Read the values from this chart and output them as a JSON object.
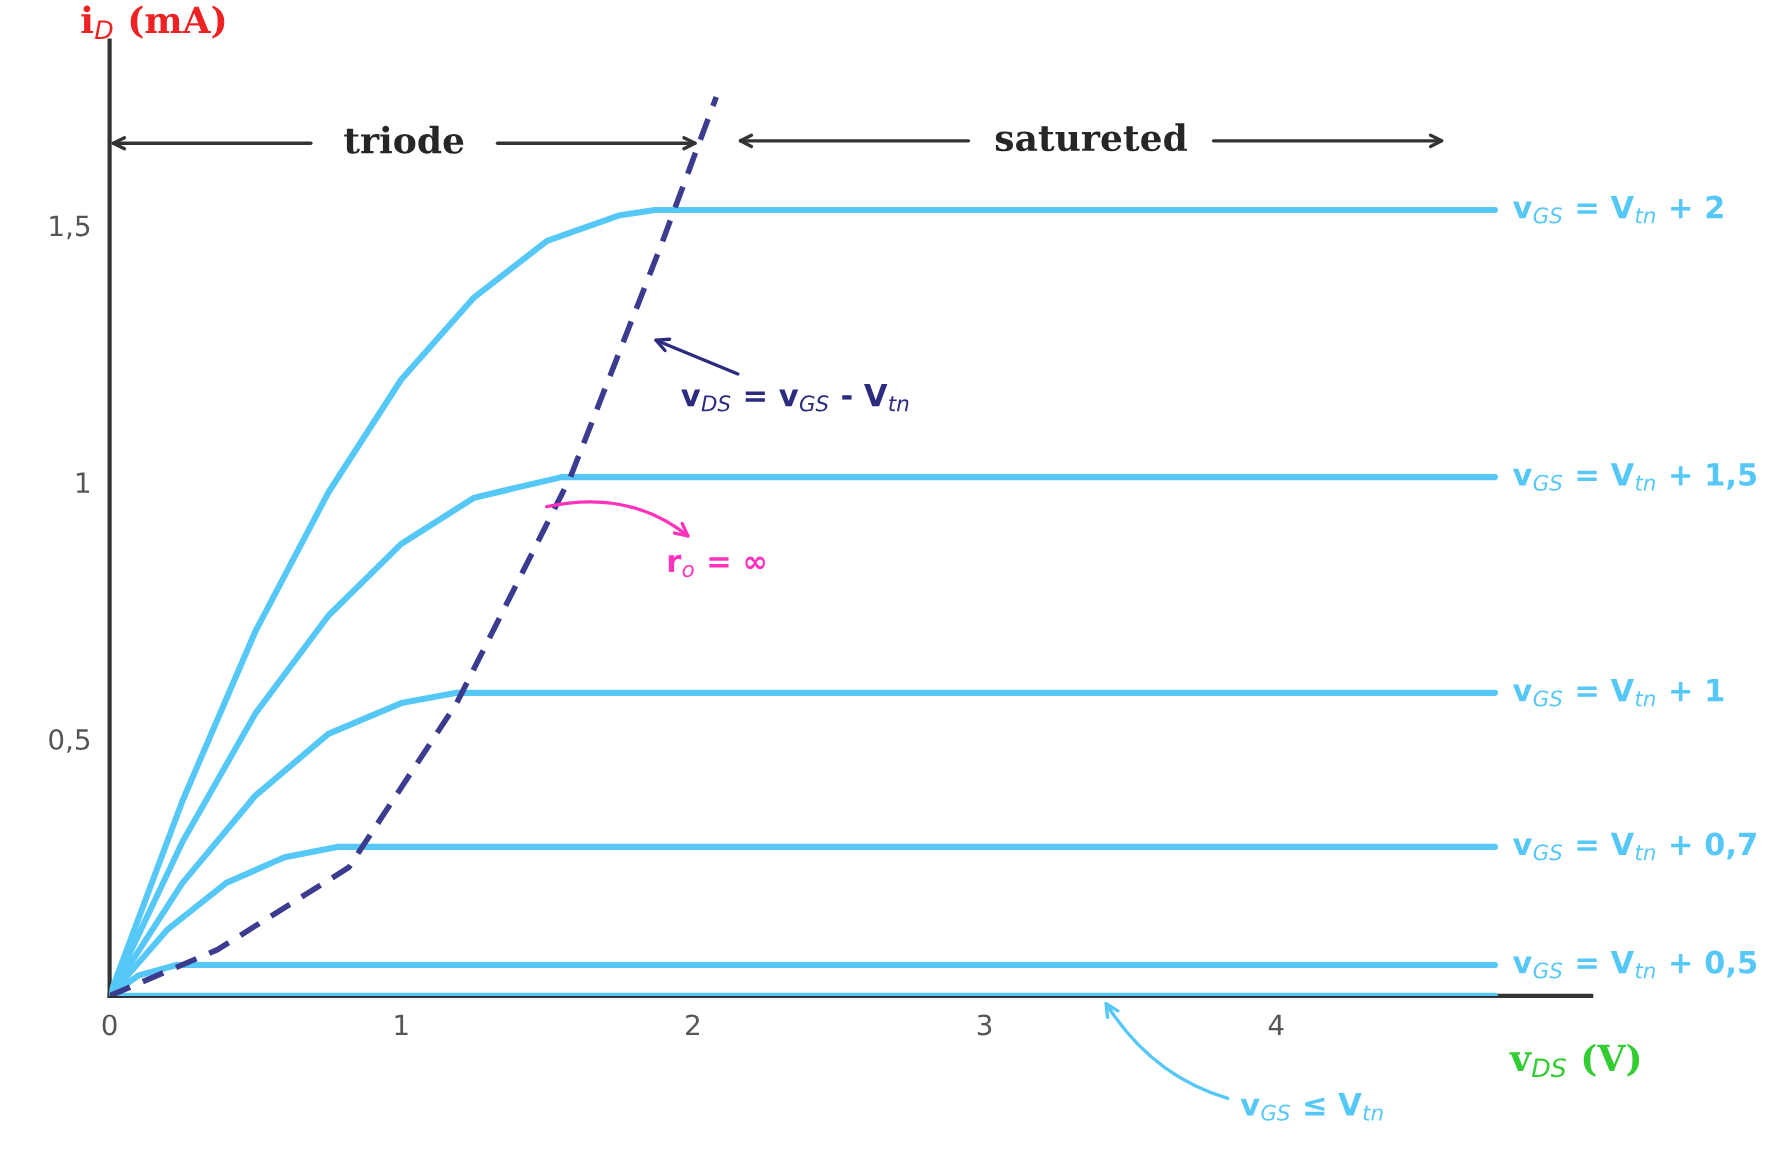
{
  "chart_data": {
    "type": "line",
    "xlabel": "v$_{DS}$ (V)",
    "ylabel": "i$_{D}$ (mA)",
    "xlim": [
      0,
      5.08
    ],
    "ylim": [
      0,
      1.86
    ],
    "xticks": [
      {
        "value": 0,
        "label": "0"
      },
      1,
      2,
      3,
      4
    ],
    "yticks": [
      {
        "value": 0,
        "label": null
      },
      {
        "value": 0.5,
        "label": "0,5"
      },
      1,
      {
        "value": 1.5,
        "label": "1,5"
      }
    ],
    "grid": false,
    "legend": false,
    "series": [
      {
        "name": "v$_{GS}$ = V$_{tn}$ + 2",
        "color": "#55c8f8",
        "x": [
          0,
          0.25,
          0.5,
          0.75,
          1.0,
          1.25,
          1.5,
          1.75,
          1.87,
          4.75
        ],
        "values": [
          0,
          0.38,
          0.71,
          0.98,
          1.2,
          1.36,
          1.47,
          1.52,
          1.53,
          1.53
        ]
      },
      {
        "name": "v$_{GS}$ = V$_{tn}$ + 1,5",
        "color": "#55c8f8",
        "x": [
          0,
          0.25,
          0.5,
          0.75,
          1.0,
          1.25,
          1.55,
          4.75
        ],
        "values": [
          0,
          0.3,
          0.55,
          0.74,
          0.88,
          0.97,
          1.01,
          1.01
        ]
      },
      {
        "name": "v$_{GS}$ = V$_{tn}$ + 1",
        "color": "#55c8f8",
        "x": [
          0,
          0.25,
          0.5,
          0.75,
          1.0,
          1.19,
          4.75
        ],
        "values": [
          0,
          0.22,
          0.39,
          0.51,
          0.57,
          0.59,
          0.59
        ]
      },
      {
        "name": "v$_{GS}$ = V$_{tn}$ + 0,7",
        "color": "#55c8f8",
        "x": [
          0,
          0.2,
          0.4,
          0.6,
          0.78,
          4.75
        ],
        "values": [
          0,
          0.13,
          0.22,
          0.27,
          0.29,
          0.29
        ]
      },
      {
        "name": "v$_{GS}$ = V$_{tn}$ + 0,5",
        "color": "#55c8f8",
        "x": [
          0,
          0.1,
          0.23,
          4.75
        ],
        "values": [
          0,
          0.04,
          0.06,
          0.06
        ]
      },
      {
        "color": "#55c8f8",
        "x": [
          0,
          4.75
        ],
        "values": [
          0,
          0
        ]
      },
      {
        "color": "#3b3b8f",
        "line_style": "dashed",
        "x": [
          0,
          0.37,
          0.82,
          1.19,
          1.58,
          1.89,
          2.08
        ],
        "values": [
          0,
          0.09,
          0.25,
          0.57,
          1.01,
          1.46,
          1.75
        ]
      }
    ],
    "annotations": [
      {
        "text": "triode",
        "x": 2.02,
        "y": 1.66
      },
      "satureted",
      "v$_{DS}$ = v$_{GS}$ - V$_{tn}$",
      {
        "text": "r$_{o}$ = ∞",
        "x": 1.48,
        "y": 0.95
      },
      {
        "text": "v$_{GS}$ ≤ V$_{tn}$",
        "x": 3.4,
        "y": 0
      }
    ]
  }
}
